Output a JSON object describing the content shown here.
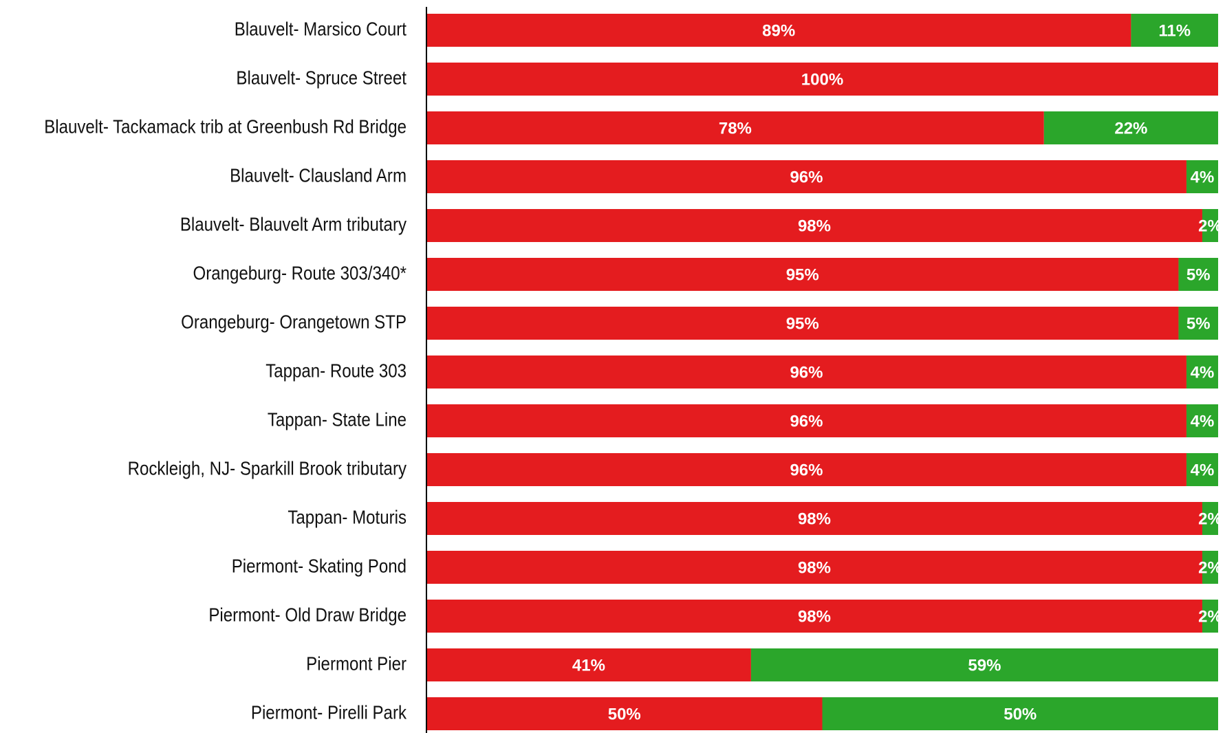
{
  "chart_data": {
    "type": "stacked_barh",
    "categories": [
      "Blauvelt- Marsico Court",
      "Blauvelt- Spruce Street",
      "Blauvelt- Tackamack trib at Greenbush Rd Bridge",
      "Blauvelt- Clausland Arm",
      "Blauvelt- Blauvelt Arm tributary",
      "Orangeburg- Route 303/340*",
      "Orangeburg- Orangetown STP",
      "Tappan- Route 303",
      "Tappan- State Line",
      "Rockleigh, NJ- Sparkill Brook tributary",
      "Tappan- Moturis",
      "Piermont- Skating Pond",
      "Piermont- Old Draw Bridge",
      "Piermont Pier",
      "Piermont- Pirelli Park"
    ],
    "series": [
      {
        "color": "#e41c1f",
        "values": [
          89,
          100,
          78,
          96,
          98,
          95,
          95,
          96,
          96,
          96,
          98,
          98,
          98,
          41,
          50
        ],
        "value_labels": [
          "89%",
          "100%",
          "78%",
          "96%",
          "98%",
          "95%",
          "95%",
          "96%",
          "96%",
          "96%",
          "98%",
          "98%",
          "98%",
          "41%",
          "50%"
        ]
      },
      {
        "color": "#2ba62b",
        "values": [
          11,
          0,
          22,
          4,
          2,
          5,
          5,
          4,
          4,
          4,
          2,
          2,
          2,
          59,
          50
        ],
        "value_labels": [
          "11%",
          null,
          "22%",
          "4%",
          "2%",
          "5%",
          "5%",
          "4%",
          "4%",
          "4%",
          "2%",
          "2%",
          "2%",
          "59%",
          "50%"
        ]
      }
    ],
    "xlim": [
      0,
      100
    ]
  }
}
